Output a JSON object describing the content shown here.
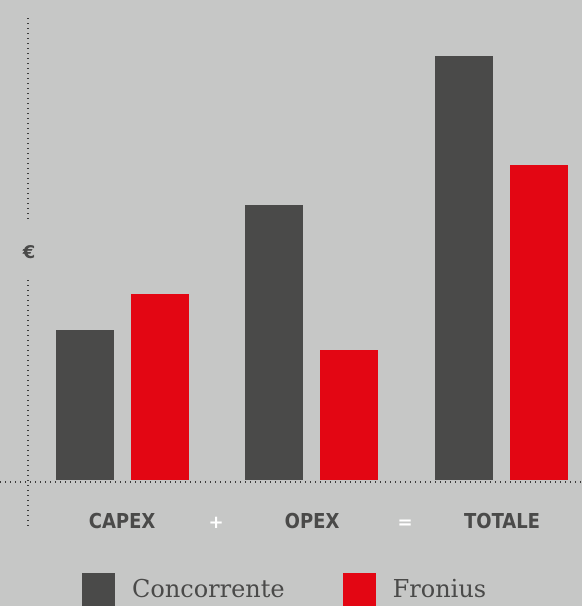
{
  "chart_data": {
    "type": "bar",
    "unit_label": "€",
    "categories": [
      "CAPEX",
      "OPEX",
      "TOTALE"
    ],
    "operators": [
      "+",
      "="
    ],
    "series": [
      {
        "name": "Concorrente",
        "color": "#4a4a49",
        "values": [
          150,
          275,
          424
        ]
      },
      {
        "name": "Fronius",
        "color": "#e30613",
        "values": [
          186,
          130,
          315
        ]
      }
    ],
    "ylim": [
      0,
      424
    ],
    "grid": false,
    "legend_position": "bottom"
  }
}
